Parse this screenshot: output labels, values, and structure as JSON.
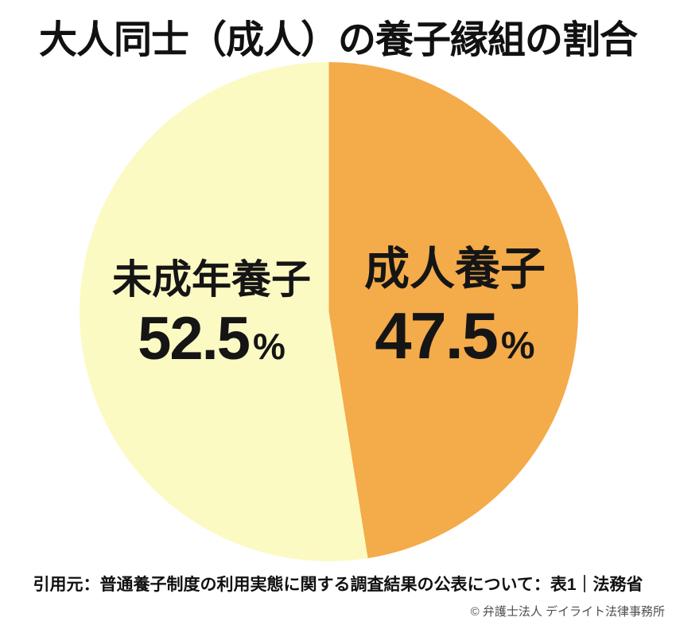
{
  "page": {
    "background": "#FFFFFF",
    "text_color": "#111111",
    "copyright_color": "#4F4F4F",
    "source_note": "引用元：普通養子制度の利用実態に関する調査結果の公表について：表1｜法務省",
    "copyright": "© 弁護士法人 デイライト法律事務所"
  },
  "chart_data": {
    "type": "pie",
    "title": "大人同士（成人）の養子縁組の割合",
    "direction": "clockwise",
    "start_angle_deg": 0,
    "legend": "none (labels placed inside slices)",
    "slices": [
      {
        "label": "成人養子",
        "value": 47.5,
        "value_text": "47.5",
        "unit": "%",
        "color": "#F4AB4A",
        "side": "right"
      },
      {
        "label": "未成年養子",
        "value": 52.5,
        "value_text": "52.5",
        "unit": "%",
        "color": "#FCFAC3",
        "side": "left"
      }
    ]
  }
}
